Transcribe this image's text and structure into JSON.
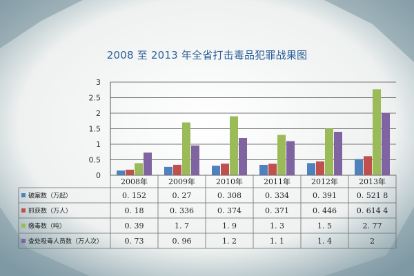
{
  "title": "2008 至 2013 年全省打击毒品犯罪战果图",
  "colors": {
    "background": "#f2f4f3",
    "title": "#2a5d9a",
    "series": [
      "#4f81bd",
      "#c0504d",
      "#9bbb59",
      "#8064a2"
    ]
  },
  "chart_data": {
    "type": "bar",
    "title": "2008 至 2013 年全省打击毒品犯罪战果图",
    "categories": [
      "2008年",
      "2009年",
      "2010年",
      "2011年",
      "2012年",
      "2013年"
    ],
    "y_ticks": [
      "3",
      "2.5",
      "2",
      "1.5",
      "1",
      "0.5",
      "0"
    ],
    "ylim": [
      0,
      3
    ],
    "grid": true,
    "legend": "data-table-left",
    "series": [
      {
        "name": "破案数（万起）",
        "values": [
          0.152,
          0.27,
          0.308,
          0.334,
          0.391,
          0.5218
        ],
        "labels": [
          "0. 152",
          "0. 27",
          "0. 308",
          "0. 334",
          "0. 391",
          "0. 521 8"
        ]
      },
      {
        "name": "抓获数（万人）",
        "values": [
          0.18,
          0.336,
          0.374,
          0.371,
          0.446,
          0.6144
        ],
        "labels": [
          "0. 18",
          "0. 336",
          "0. 374",
          "0. 371",
          "0. 446",
          "0. 614 4"
        ]
      },
      {
        "name": "缴毒数（吨）",
        "values": [
          0.39,
          1.7,
          1.9,
          1.3,
          1.5,
          2.77
        ],
        "labels": [
          "0. 39",
          "1. 7",
          "1. 9",
          "1. 3",
          "1. 5",
          "2. 77"
        ]
      },
      {
        "name": "查处吸毒人员数（万人次）",
        "values": [
          0.73,
          0.96,
          1.2,
          1.1,
          1.4,
          2
        ],
        "labels": [
          "0. 73",
          "0. 96",
          "1. 2",
          "1. 1",
          "1. 4",
          "2"
        ]
      }
    ]
  }
}
